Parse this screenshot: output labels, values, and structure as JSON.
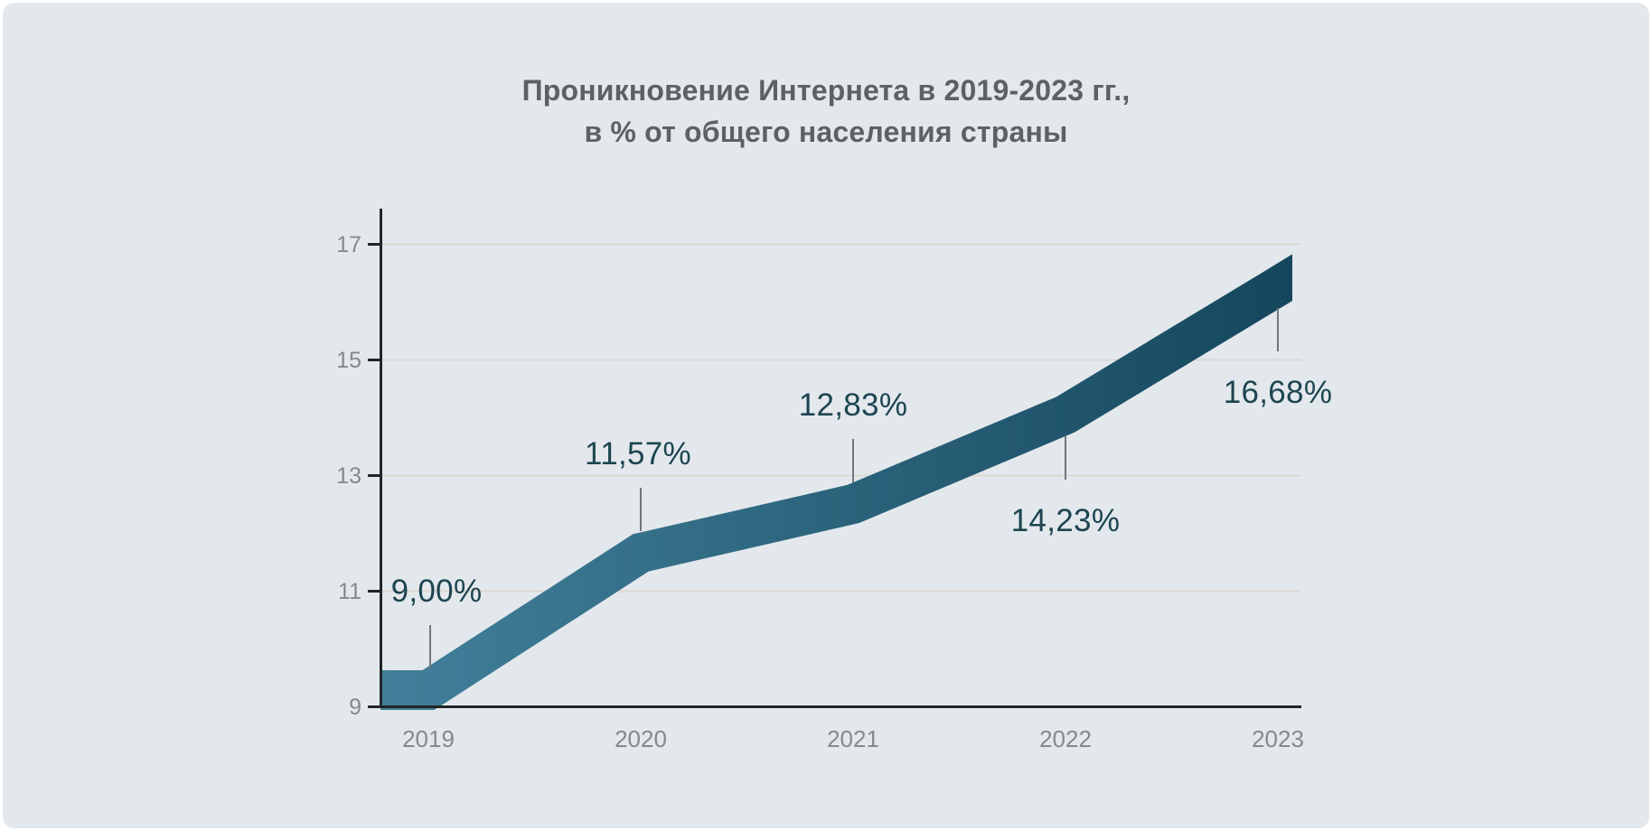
{
  "page": {
    "background": "#ffffff",
    "card_background": "#e3e8ec"
  },
  "title": {
    "line1": "Проникновение Интернета в 2019-2023 гг.,",
    "line2": "в % от общего населения страны",
    "color": "#5d6164"
  },
  "chart_data": {
    "type": "line",
    "title": "Проникновение Интернета в 2019-2023 гг., в % от общего населения страны",
    "x": [
      "2019",
      "2020",
      "2021",
      "2022",
      "2023"
    ],
    "values": [
      9.0,
      11.57,
      12.83,
      14.23,
      16.68
    ],
    "point_labels": [
      "9,00%",
      "11,57%",
      "12,83%",
      "14,23%",
      "16,68%"
    ],
    "label_position": [
      "above",
      "above",
      "above",
      "below",
      "below"
    ],
    "unit": "% of total population",
    "xlabel": "",
    "ylabel": "",
    "yticks": [
      9,
      11,
      13,
      15,
      17
    ],
    "ylim": [
      9,
      17.6
    ],
    "grid": true,
    "legend": false,
    "style": {
      "band_gradient_start": "#42809b",
      "band_gradient_end": "#15475d",
      "point_label_color": "#1d4551",
      "axis_color": "#222527",
      "tick_label_color": "#85898d",
      "gridline_color": "#dcd8d2",
      "callout_color": "#70767a"
    }
  }
}
